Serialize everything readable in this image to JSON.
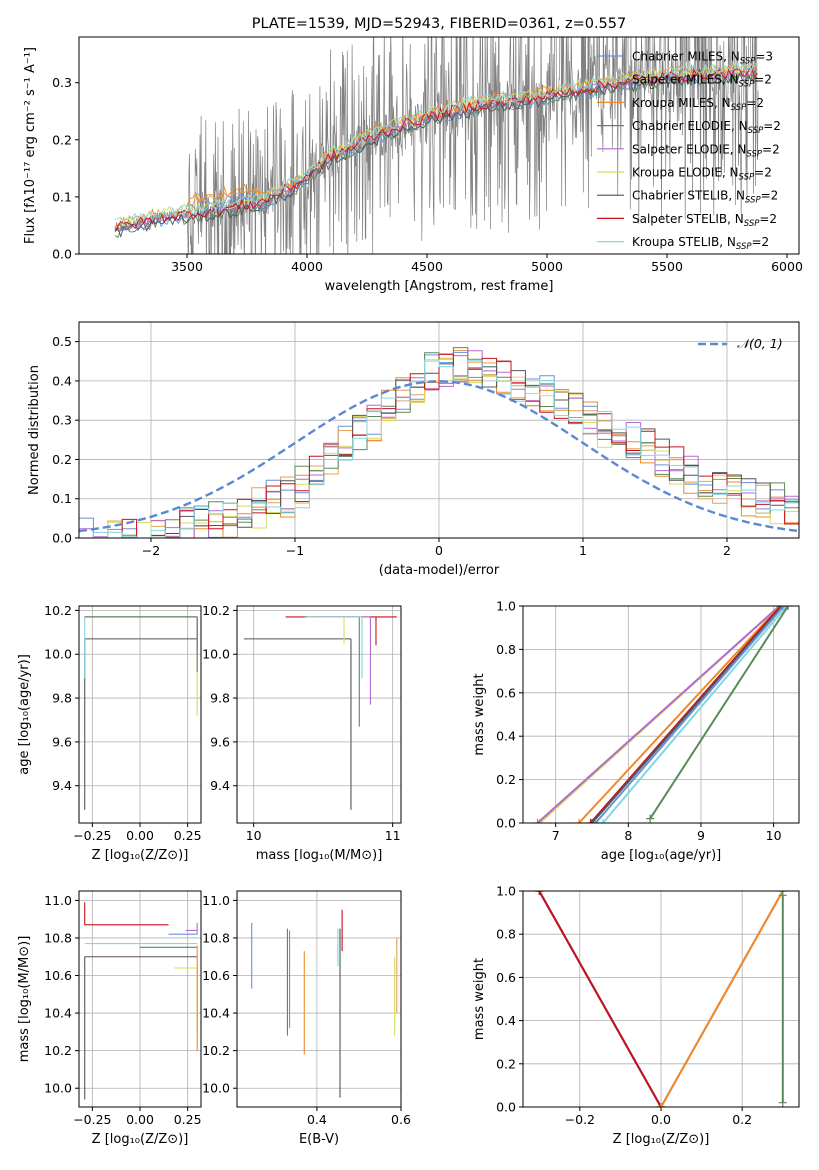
{
  "palette": {
    "Chabrier MILES": "#6a8fd8",
    "Salpeter MILES": "#e6a05a",
    "Kroupa MILES": "#f08a28",
    "Chabrier ELODIE": "#5a8a5a",
    "Salpeter ELODIE": "#b36ad1",
    "Kroupa ELODIE": "#d8dc5a",
    "Chabrier STELIB": "#555555",
    "Salpeter STELIB": "#c8101e",
    "Kroupa STELIB": "#80d8e0",
    "grey_spectrum": "#808080",
    "gaussian": "#5b88d6"
  },
  "chart_data": [
    {
      "id": "spectrum",
      "type": "line",
      "title": "PLATE=1539, MJD=52943, FIBERID=0361, z=0.557",
      "xlabel": "wavelength [Angstrom, rest frame]",
      "ylabel": "Flux [fλ10⁻¹⁷ erg cm⁻² s⁻¹ A⁻¹]",
      "xlim": [
        3050,
        6050
      ],
      "ylim": [
        0,
        0.38
      ],
      "xticks": [
        3500,
        4000,
        4500,
        5000,
        5500,
        6000
      ],
      "yticks": [
        0.0,
        0.1,
        0.2,
        0.3
      ],
      "legend": [
        {
          "model": "Chabrier MILES",
          "label": "Chabrier MILES, N",
          "sub": "SSP",
          "tail": "=3"
        },
        {
          "model": "Salpeter MILES",
          "label": "Salpeter MILES, N",
          "sub": "SSP",
          "tail": "=2"
        },
        {
          "model": "Kroupa MILES",
          "label": "Kroupa MILES, N",
          "sub": "SSP",
          "tail": "=2"
        },
        {
          "model": "Chabrier ELODIE",
          "label": "Chabrier ELODIE, N",
          "sub": "SSP",
          "tail": "=2"
        },
        {
          "model": "Salpeter ELODIE",
          "label": "Salpeter ELODIE, N",
          "sub": "SSP",
          "tail": "=2"
        },
        {
          "model": "Kroupa ELODIE",
          "label": "Kroupa ELODIE, N",
          "sub": "SSP",
          "tail": "=2"
        },
        {
          "model": "Chabrier STELIB",
          "label": "Chabrier STELIB, N",
          "sub": "SSP",
          "tail": "=2"
        },
        {
          "model": "Salpeter STELIB",
          "label": "Salpeter STELIB, N",
          "sub": "SSP",
          "tail": "=2"
        },
        {
          "model": "Kroupa STELIB",
          "label": "Kroupa STELIB, N",
          "sub": "SSP",
          "tail": "=2"
        }
      ],
      "model_ranges": [
        [
          3200,
          5880
        ],
        [
          3500,
          5880
        ]
      ],
      "continuum": [
        [
          3200,
          0.045
        ],
        [
          3400,
          0.065
        ],
        [
          3600,
          0.075
        ],
        [
          3800,
          0.09
        ],
        [
          3950,
          0.12
        ],
        [
          4100,
          0.17
        ],
        [
          4300,
          0.21
        ],
        [
          4500,
          0.24
        ],
        [
          4700,
          0.26
        ],
        [
          4900,
          0.27
        ],
        [
          5100,
          0.285
        ],
        [
          5300,
          0.3
        ],
        [
          5500,
          0.31
        ],
        [
          5700,
          0.315
        ],
        [
          5880,
          0.32
        ]
      ]
    },
    {
      "id": "residuals",
      "type": "line",
      "xlabel": "(data-model)/error",
      "ylabel": "Normed distribution",
      "xlim": [
        -2.5,
        2.5
      ],
      "ylim": [
        0,
        0.55
      ],
      "xticks": [
        -2,
        -1,
        0,
        1,
        2
      ],
      "xtick_labels": [
        "−2",
        "−1",
        "0",
        "1",
        "2"
      ],
      "yticks": [
        0.0,
        0.1,
        0.2,
        0.3,
        0.4,
        0.5
      ],
      "grid": true,
      "legend_label": "𝒩(0, 1)",
      "bin_width": 0.1,
      "bin_edges_range": [
        -2.5,
        2.5
      ],
      "hist_envelope": [
        [
          -2.5,
          0.0
        ],
        [
          -2.0,
          0.01
        ],
        [
          -1.5,
          0.05
        ],
        [
          -1.0,
          0.12
        ],
        [
          -0.7,
          0.22
        ],
        [
          -0.4,
          0.32
        ],
        [
          -0.1,
          0.42
        ],
        [
          0.2,
          0.44
        ],
        [
          0.5,
          0.4
        ],
        [
          0.8,
          0.36
        ],
        [
          1.1,
          0.3
        ],
        [
          1.4,
          0.24
        ],
        [
          1.7,
          0.18
        ],
        [
          2.0,
          0.12
        ],
        [
          2.3,
          0.1
        ],
        [
          2.5,
          0.08
        ]
      ]
    },
    {
      "id": "age-vs-Z",
      "type": "scatter",
      "xlabel": "Z [log₁₀(Z/Z⊙)]",
      "ylabel": "age  [log₁₀(age/yr)]",
      "xlim": [
        -0.32,
        0.32
      ],
      "ylim": [
        9.23,
        10.22
      ],
      "xticks": [
        -0.25,
        0.0,
        0.25
      ],
      "xtick_labels": [
        "−0.25",
        "0.00",
        "0.25"
      ],
      "yticks": [
        9.4,
        9.6,
        9.8,
        10.0,
        10.2
      ],
      "grid": true,
      "points": [
        {
          "model": "Chabrier STELIB",
          "x": -0.29,
          "y": 10.07,
          "xerr": [
            0.0,
            0.59
          ],
          "yerr": [
            0.78,
            0.0
          ]
        },
        {
          "model": "Kroupa STELIB",
          "x": -0.29,
          "y": 10.17,
          "xerr": [
            0.0,
            0.59
          ],
          "yerr": [
            0.28,
            0.0
          ]
        },
        {
          "model": "Chabrier MILES",
          "x": 0.3,
          "y": 10.17,
          "xerr": [
            0.59,
            0.0
          ],
          "yerr": [
            0.17,
            0.0
          ]
        },
        {
          "model": "Kroupa ELODIE",
          "x": 0.3,
          "y": 10.17,
          "xerr": [
            0.59,
            0.0
          ],
          "yerr": [
            0.45,
            0.0
          ]
        },
        {
          "model": "Salpeter ELODIE",
          "x": 0.3,
          "y": 10.17,
          "xerr": [
            0.59,
            0.0
          ],
          "yerr": [
            0.15,
            0.0
          ]
        },
        {
          "model": "Chabrier ELODIE",
          "x": 0.3,
          "y": 10.17,
          "xerr": [
            0.59,
            0.0
          ],
          "yerr": [
            0.25,
            0.0
          ]
        }
      ]
    },
    {
      "id": "age-vs-mass",
      "type": "scatter",
      "xlabel": "mass [log₁₀(M/M⊙)]",
      "xlim": [
        9.88,
        11.06
      ],
      "ylim": [
        9.23,
        10.22
      ],
      "xticks": [
        10,
        11
      ],
      "yticks": [
        9.4,
        9.6,
        9.8,
        10.0,
        10.2
      ],
      "grid": true,
      "points": [
        {
          "model": "Chabrier STELIB",
          "x": 10.7,
          "y": 10.07,
          "xerr": [
            0.77,
            0.0
          ],
          "yerr": [
            0.78,
            0.0
          ]
        },
        {
          "model": "Kroupa ELODIE",
          "x": 10.65,
          "y": 10.17,
          "xerr": [
            0.0,
            0.0
          ],
          "yerr": [
            0.12,
            0.0
          ]
        },
        {
          "model": "Salpeter STELIB",
          "x": 10.88,
          "y": 10.17,
          "xerr": [
            0.65,
            0.15
          ],
          "yerr": [
            0.13,
            0.0
          ]
        },
        {
          "model": "Chabrier ELODIE",
          "x": 10.76,
          "y": 10.17,
          "xerr": [
            0.4,
            0.0
          ],
          "yerr": [
            0.5,
            0.0
          ]
        },
        {
          "model": "Salpeter ELODIE",
          "x": 10.84,
          "y": 10.17,
          "xerr": [
            0.4,
            0.0
          ],
          "yerr": [
            0.4,
            0.0
          ]
        },
        {
          "model": "Kroupa STELIB",
          "x": 10.78,
          "y": 10.17,
          "xerr": [
            0.4,
            0.0
          ],
          "yerr": [
            0.28,
            0.0
          ]
        }
      ]
    },
    {
      "id": "cum-age",
      "type": "line",
      "xlabel": "age  [log₁₀(age/yr)]",
      "ylabel": "mass weight",
      "xlim": [
        6.55,
        10.35
      ],
      "ylim": [
        0,
        1
      ],
      "xticks": [
        7,
        8,
        9,
        10
      ],
      "yticks": [
        0.0,
        0.2,
        0.4,
        0.6,
        0.8,
        1.0
      ],
      "grid": true,
      "series": [
        {
          "model": "Kroupa ELODIE",
          "x": [
            6.78,
            10.08
          ],
          "y": [
            0,
            1
          ]
        },
        {
          "model": "Salpeter ELODIE",
          "x": [
            6.75,
            10.08
          ],
          "y": [
            0,
            1
          ]
        },
        {
          "model": "Kroupa MILES",
          "x": [
            7.32,
            10.09
          ],
          "y": [
            0,
            1
          ]
        },
        {
          "model": "Salpeter STELIB",
          "x": [
            7.48,
            10.1
          ],
          "y": [
            0,
            1
          ]
        },
        {
          "model": "Chabrier STELIB",
          "x": [
            7.5,
            10.12
          ],
          "y": [
            0,
            1
          ]
        },
        {
          "model": "Chabrier MILES",
          "x": [
            7.55,
            10.14
          ],
          "y": [
            0,
            1
          ]
        },
        {
          "model": "Kroupa STELIB",
          "x": [
            7.65,
            10.18
          ],
          "y": [
            0,
            1
          ]
        },
        {
          "model": "Chabrier ELODIE",
          "x": [
            8.3,
            10.2
          ],
          "y": [
            0.02,
            1
          ]
        }
      ]
    },
    {
      "id": "mass-vs-Z",
      "type": "scatter",
      "xlabel": "Z [log₁₀(Z/Z⊙)]",
      "ylabel": "mass [log₁₀(M/M⊙)]",
      "xlim": [
        -0.32,
        0.32
      ],
      "ylim": [
        9.9,
        11.05
      ],
      "xticks": [
        -0.25,
        0.0,
        0.25
      ],
      "xtick_labels": [
        "−0.25",
        "0.00",
        "0.25"
      ],
      "yticks": [
        10.0,
        10.2,
        10.4,
        10.6,
        10.8,
        11.0
      ],
      "grid": true,
      "points": [
        {
          "model": "Salpeter STELIB",
          "x": -0.29,
          "y": 10.87,
          "xerr": [
            0.0,
            0.44
          ],
          "yerr": [
            0.0,
            0.12
          ]
        },
        {
          "model": "Kroupa STELIB",
          "x": -0.29,
          "y": 10.77,
          "xerr": [
            0.0,
            0.59
          ],
          "yerr": [
            0.0,
            0.0
          ]
        },
        {
          "model": "Chabrier STELIB",
          "x": -0.29,
          "y": 10.7,
          "xerr": [
            0.0,
            0.59
          ],
          "yerr": [
            0.76,
            0.0
          ]
        },
        {
          "model": "Chabrier MILES",
          "x": 0.3,
          "y": 10.82,
          "xerr": [
            0.15,
            0.0
          ],
          "yerr": [
            0.0,
            0.06
          ]
        },
        {
          "model": "Salpeter ELODIE",
          "x": 0.3,
          "y": 10.84,
          "xerr": [
            0.06,
            0.0
          ],
          "yerr": [
            0.0,
            0.0
          ]
        },
        {
          "model": "Chabrier ELODIE",
          "x": 0.3,
          "y": 10.75,
          "xerr": [
            0.3,
            0.0
          ],
          "yerr": [
            0.0,
            0.0
          ]
        },
        {
          "model": "Kroupa ELODIE",
          "x": 0.3,
          "y": 10.64,
          "xerr": [
            0.12,
            0.0
          ],
          "yerr": [
            0.35,
            0.0
          ]
        },
        {
          "model": "Kroupa MILES",
          "x": 0.3,
          "y": 10.76,
          "xerr": [
            0.0,
            0.0
          ],
          "yerr": [
            0.56,
            0.0
          ]
        }
      ]
    },
    {
      "id": "mass-vs-EBV",
      "type": "scatter",
      "xlabel": "E(B-V)",
      "xlim": [
        0.21,
        0.6
      ],
      "ylim": [
        9.9,
        11.05
      ],
      "xticks": [
        0.4,
        0.6
      ],
      "yticks": [
        10.0,
        10.2,
        10.4,
        10.6,
        10.8,
        11.0
      ],
      "grid": true,
      "points": [
        {
          "model": "Chabrier MILES",
          "x": 0.245,
          "y": 10.7,
          "xerr": [
            0,
            0
          ],
          "yerr": [
            0.17,
            0.18
          ]
        },
        {
          "model": "Chabrier ELODIE",
          "x": 0.33,
          "y": 10.6,
          "xerr": [
            0,
            0
          ],
          "yerr": [
            0.32,
            0.25
          ]
        },
        {
          "model": "Salpeter ELODIE",
          "x": 0.335,
          "y": 10.6,
          "xerr": [
            0,
            0
          ],
          "yerr": [
            0.28,
            0.24
          ]
        },
        {
          "model": "Kroupa MILES",
          "x": 0.37,
          "y": 10.45,
          "xerr": [
            0,
            0
          ],
          "yerr": [
            0.27,
            0.28
          ]
        },
        {
          "model": "Kroupa STELIB",
          "x": 0.45,
          "y": 10.75,
          "xerr": [
            0,
            0
          ],
          "yerr": [
            0.1,
            0.1
          ]
        },
        {
          "model": "Chabrier STELIB",
          "x": 0.455,
          "y": 10.4,
          "xerr": [
            0,
            0
          ],
          "yerr": [
            0.45,
            0.45
          ]
        },
        {
          "model": "Salpeter STELIB",
          "x": 0.46,
          "y": 10.83,
          "xerr": [
            0,
            0
          ],
          "yerr": [
            0.1,
            0.12
          ]
        },
        {
          "model": "Kroupa ELODIE",
          "x": 0.585,
          "y": 10.5,
          "xerr": [
            0,
            0
          ],
          "yerr": [
            0.22,
            0.2
          ]
        },
        {
          "model": "Salpeter MILES",
          "x": 0.59,
          "y": 10.6,
          "xerr": [
            0,
            0
          ],
          "yerr": [
            0.2,
            0.2
          ]
        }
      ]
    },
    {
      "id": "cum-Z",
      "type": "line",
      "xlabel": "Z [log₁₀(Z/Z⊙)]",
      "ylabel": "mass weight",
      "xlim": [
        -0.34,
        0.34
      ],
      "ylim": [
        0,
        1
      ],
      "xticks": [
        -0.2,
        0.0,
        0.2
      ],
      "xtick_labels": [
        "−0.2",
        "0.0",
        "0.2"
      ],
      "yticks": [
        0.0,
        0.2,
        0.4,
        0.6,
        0.8,
        1.0
      ],
      "grid": true,
      "series": [
        {
          "model": "Chabrier MILES",
          "x": [
            -0.3,
            0.0
          ],
          "y": [
            1,
            0
          ]
        },
        {
          "model": "Kroupa STELIB",
          "x": [
            -0.3,
            0.0
          ],
          "y": [
            1,
            0
          ]
        },
        {
          "model": "Chabrier STELIB",
          "x": [
            -0.3,
            0.0
          ],
          "y": [
            1,
            0
          ]
        },
        {
          "model": "Salpeter STELIB",
          "x": [
            -0.3,
            0.0
          ],
          "y": [
            1,
            0
          ]
        },
        {
          "model": "Kroupa ELODIE",
          "x": [
            0.0,
            0.3
          ],
          "y": [
            0,
            1
          ]
        },
        {
          "model": "Salpeter ELODIE",
          "x": [
            0.0,
            0.3
          ],
          "y": [
            0,
            1
          ]
        },
        {
          "model": "Kroupa MILES",
          "x": [
            0.0,
            0.3
          ],
          "y": [
            0,
            1
          ]
        },
        {
          "model": "Chabrier ELODIE",
          "x": [
            0.3,
            0.3
          ],
          "y": [
            0.02,
            0.98
          ]
        }
      ]
    }
  ]
}
